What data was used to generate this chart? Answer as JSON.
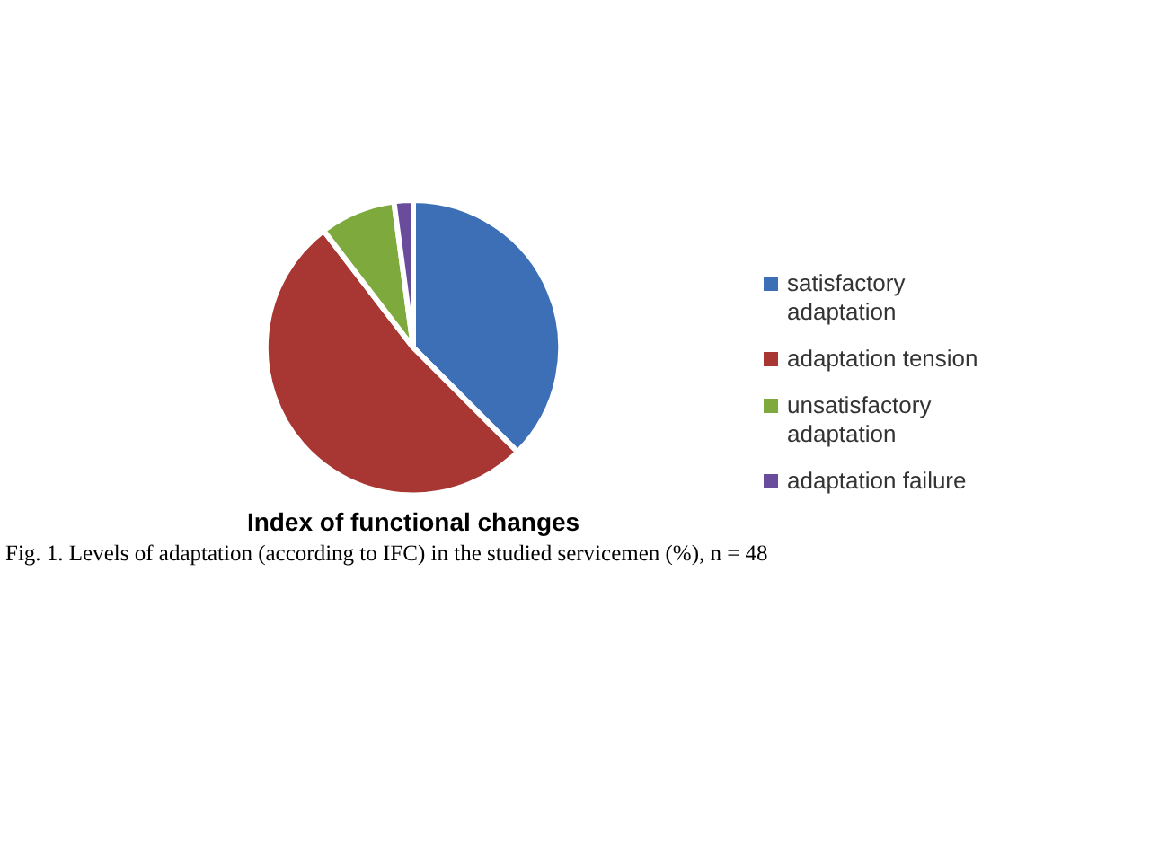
{
  "chart_data": {
    "type": "pie",
    "title": "Index of functional changes",
    "categories": [
      "satisfactory adaptation",
      "adaptation tension",
      "unsatisfactory adaptation",
      "adaptation failure"
    ],
    "values": [
      37.5,
      52.1,
      8.3,
      2.1
    ],
    "colors": [
      "#3d6fb6",
      "#a83632",
      "#7ea93d",
      "#6a4c9c"
    ],
    "legend": "right",
    "annotations": [
      "Fig. 1. Levels of adaptation (according to IFC) in the studied servicemen (%), n = 48"
    ]
  }
}
